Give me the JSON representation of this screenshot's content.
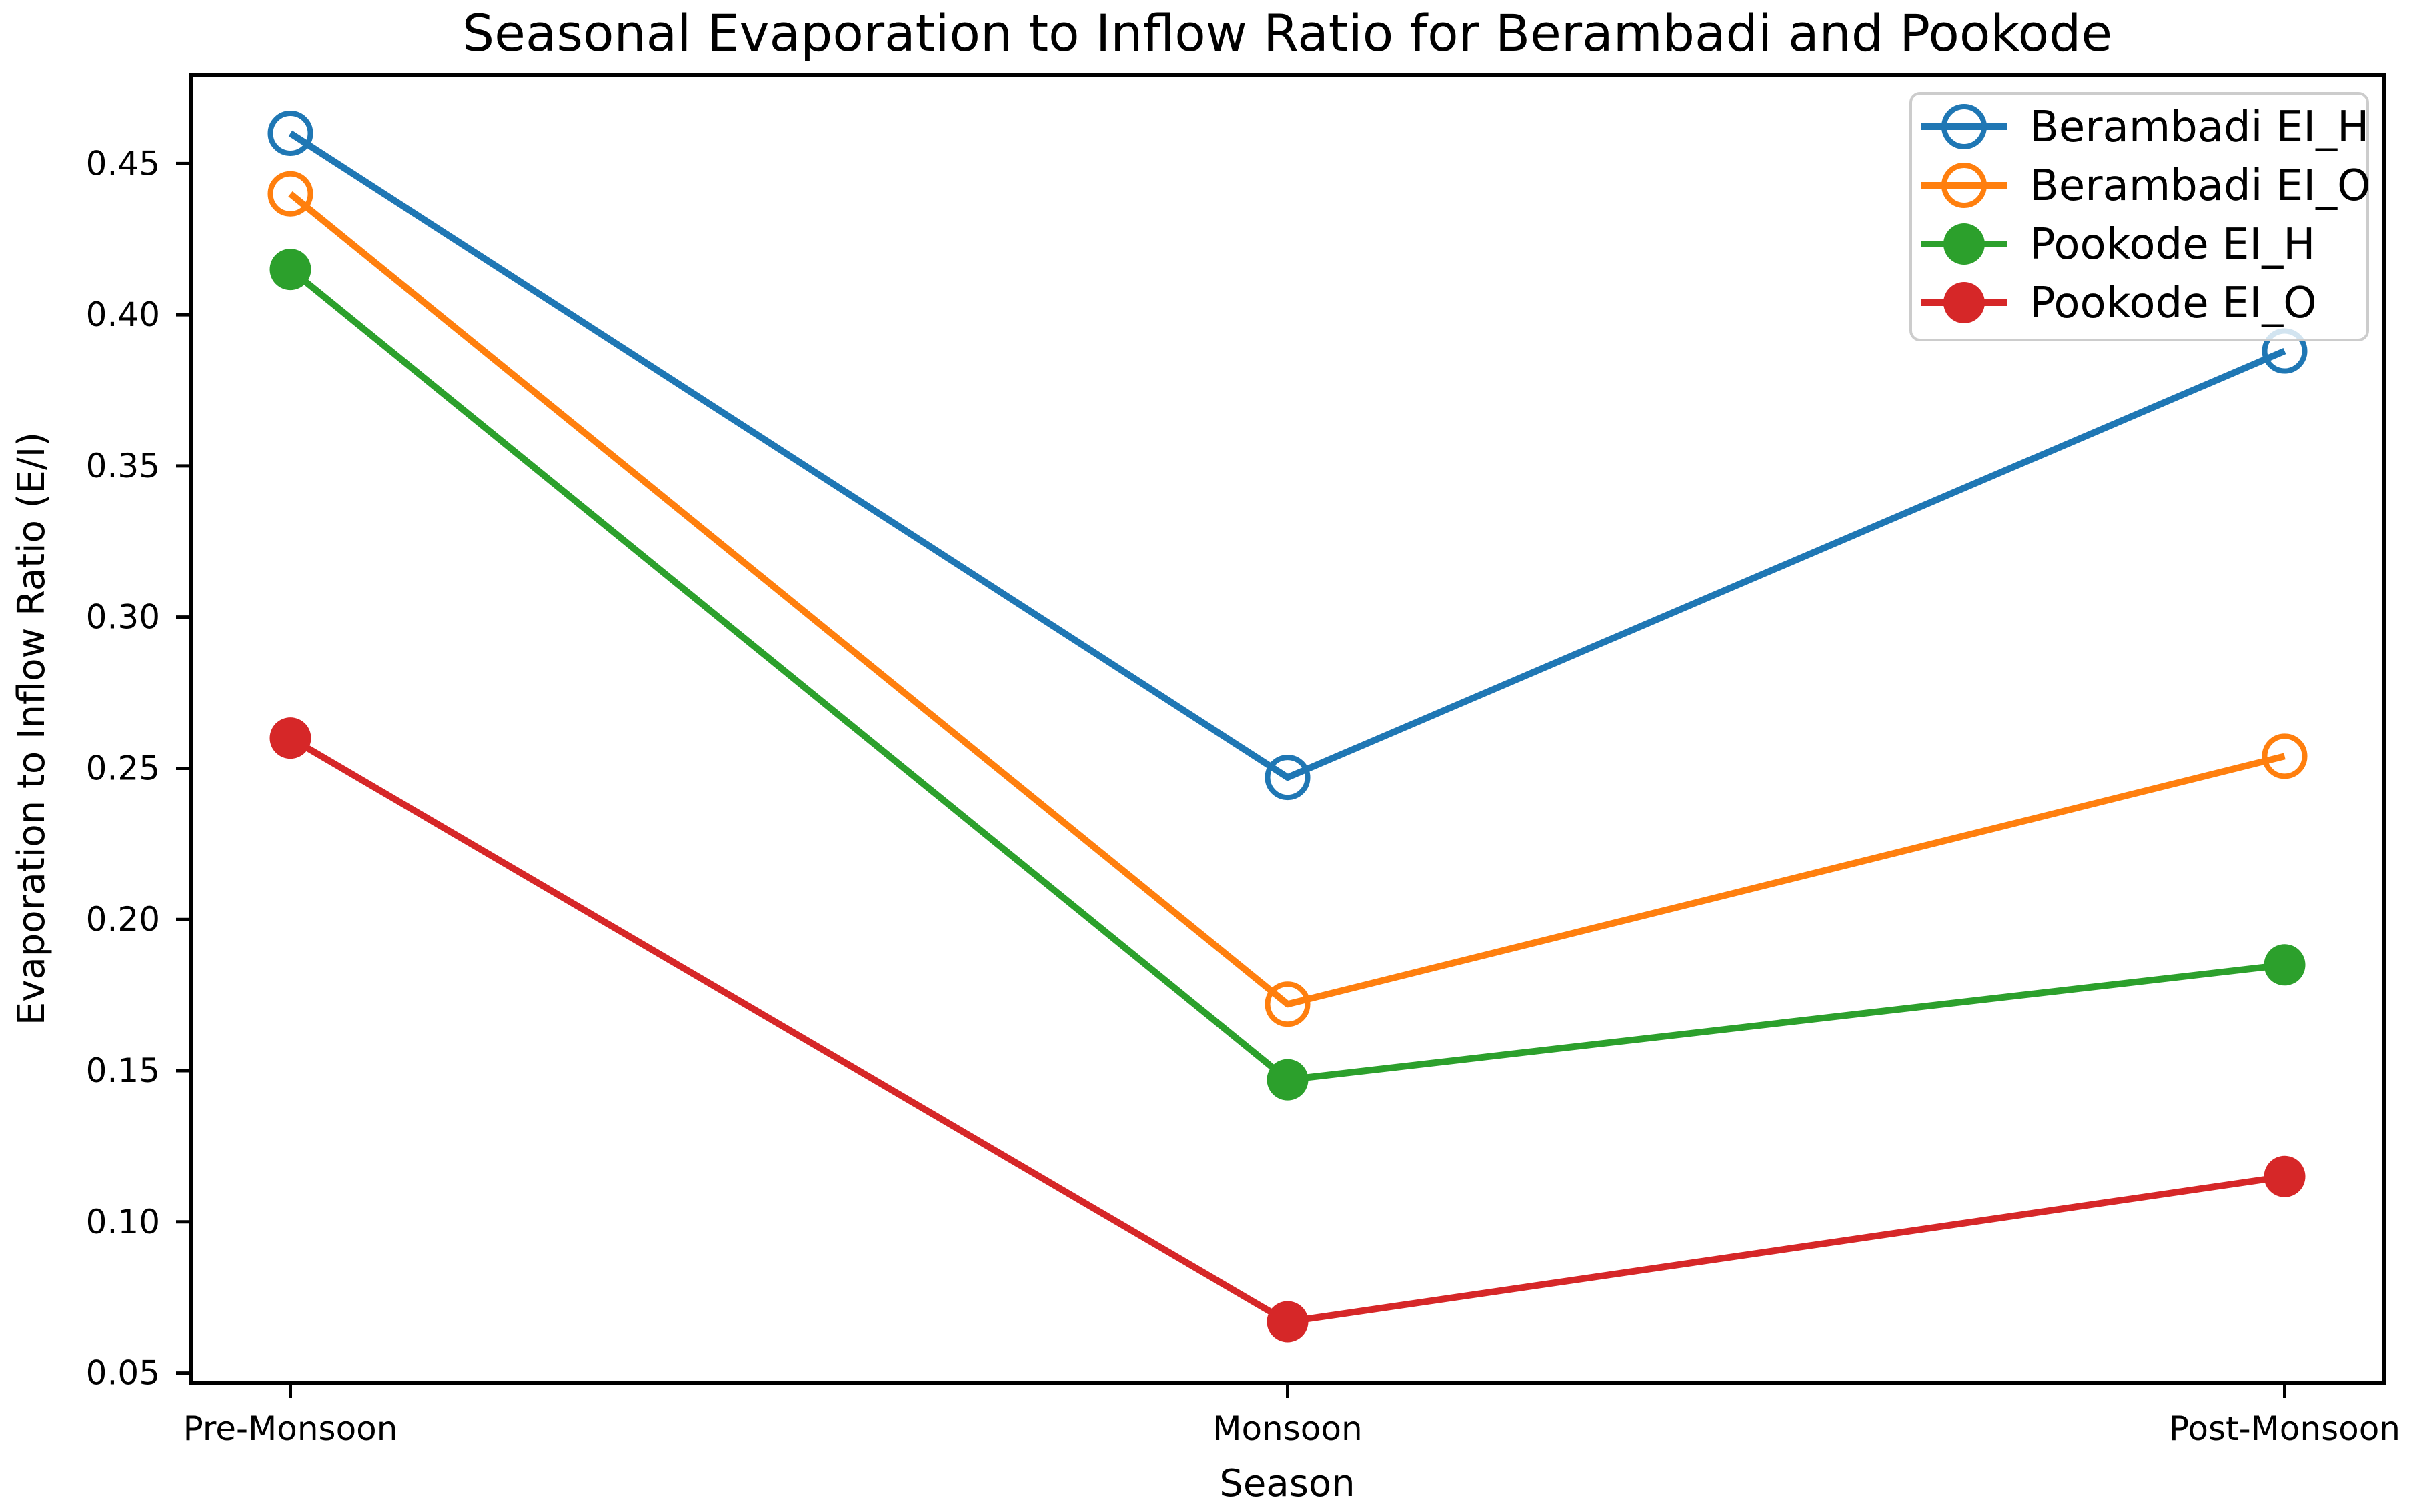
{
  "chart_data": {
    "type": "line",
    "title": "Seasonal Evaporation to Inflow Ratio for Berambadi and Pookode",
    "xlabel": "Season",
    "ylabel": "Evaporation to Inflow Ratio (E/I)",
    "categories": [
      "Pre-Monsoon",
      "Monsoon",
      "Post-Monsoon"
    ],
    "series": [
      {
        "name": "Berambadi EI_H",
        "color": "#1f77b4",
        "marker": "open-circle",
        "values": [
          0.46,
          0.247,
          0.388
        ]
      },
      {
        "name": "Berambadi EI_O",
        "color": "#ff7f0e",
        "marker": "open-circle",
        "values": [
          0.44,
          0.172,
          0.254
        ]
      },
      {
        "name": "Pookode EI_H",
        "color": "#2ca02c",
        "marker": "filled-circle",
        "values": [
          0.415,
          0.147,
          0.185
        ]
      },
      {
        "name": "Pookode EI_O",
        "color": "#d62728",
        "marker": "filled-circle",
        "values": [
          0.26,
          0.067,
          0.115
        ]
      }
    ],
    "yticks": [
      0.05,
      0.1,
      0.15,
      0.2,
      0.25,
      0.3,
      0.35,
      0.4,
      0.45
    ],
    "ytick_labels": [
      "0.05",
      "0.10",
      "0.15",
      "0.20",
      "0.25",
      "0.30",
      "0.35",
      "0.40",
      "0.45"
    ],
    "ylim": [
      0.0466,
      0.4794
    ],
    "xlim_units": [
      -0.1,
      2.1
    ],
    "grid": false,
    "legend_position": "upper right",
    "colors": {
      "axis": "#000000",
      "background": "#ffffff",
      "legend_border": "#cccccc",
      "legend_fill": "#ffffff"
    }
  }
}
